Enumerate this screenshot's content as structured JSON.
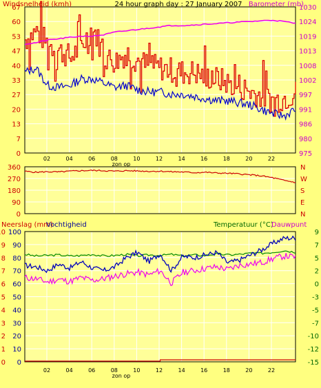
{
  "colors": {
    "background": "#ffff80",
    "plot_bg": "#ffff99",
    "grid": "#ffffff",
    "wind": "#dd0000",
    "wind_avg": "#0000cc",
    "barometer": "#ee00ee",
    "direction": "#cc0000",
    "humidity": "#0000bb",
    "temperature": "#008800",
    "dewpoint": "#ee00ee",
    "rain": "#cc0000",
    "label_red": "#cc0000",
    "label_magenta": "#cc00cc",
    "label_blue": "#000099",
    "label_green": "#006600",
    "axis_text": "#cc0000"
  },
  "chart_data": [
    {
      "type": "line",
      "title": "24 hour graph day : 27 January 2007",
      "ylabel": "Windsnelheid (kmh)",
      "y2label": "Barometer (mb)",
      "x_ticks": [
        "02",
        "04",
        "06",
        "08",
        "10",
        "12",
        "14",
        "16",
        "18",
        "20",
        "22"
      ],
      "x_sublabel": "zon op",
      "ylim": [
        0,
        67
      ],
      "y_ticks": [
        "67",
        "60",
        "53",
        "47",
        "40",
        "33",
        "27",
        "20",
        "13",
        "7",
        "0"
      ],
      "y2lim": [
        975,
        1030
      ],
      "y2_ticks": [
        "1030",
        "1024",
        "1019",
        "1013",
        "1008",
        "1002",
        "997",
        "991",
        "986",
        "980",
        "975"
      ],
      "series": [
        {
          "key": "gust",
          "x": [
            0,
            1,
            2,
            3,
            4,
            5,
            6,
            7,
            8,
            9,
            10,
            11,
            12,
            13,
            14,
            15,
            16,
            17,
            18,
            19,
            20,
            21,
            22,
            23,
            24
          ],
          "y": [
            52,
            56,
            50,
            47,
            44,
            49,
            58,
            44,
            42,
            46,
            42,
            40,
            39,
            38,
            37,
            37,
            35,
            34,
            32,
            31,
            28,
            26,
            24,
            25,
            28
          ]
        },
        {
          "key": "average",
          "x": [
            0,
            1,
            2,
            3,
            4,
            5,
            6,
            7,
            8,
            9,
            10,
            11,
            12,
            13,
            14,
            15,
            16,
            17,
            18,
            19,
            20,
            21,
            22,
            23,
            24
          ],
          "y": [
            37,
            39,
            31,
            30,
            31,
            34,
            34,
            32,
            30,
            31,
            29,
            28,
            28,
            27,
            27,
            26,
            25,
            24,
            24,
            23,
            22,
            20,
            18,
            17,
            20
          ]
        },
        {
          "key": "barometer",
          "x": [
            0,
            1,
            2,
            3,
            4,
            5,
            6,
            7,
            8,
            9,
            10,
            11,
            12,
            13,
            14,
            15,
            16,
            17,
            18,
            19,
            20,
            21,
            22,
            23,
            24
          ],
          "y": [
            1016,
            1016.5,
            1017.5,
            1018,
            1018.5,
            1019,
            1019,
            1019.5,
            1020.5,
            1021,
            1021.5,
            1022,
            1022.5,
            1023,
            1023,
            1023.2,
            1023.5,
            1023.7,
            1024,
            1024.3,
            1024.5,
            1024.8,
            1025,
            1024.5,
            1023.8
          ]
        }
      ]
    },
    {
      "type": "line",
      "ylim": [
        0,
        360
      ],
      "y_ticks": [
        "360",
        "270",
        "180",
        "90",
        "0"
      ],
      "y2_ticks": [
        "N",
        "W",
        "S",
        "E",
        "N"
      ],
      "series": [
        {
          "key": "direction",
          "x": [
            0,
            1,
            2,
            3,
            4,
            5,
            6,
            7,
            8,
            9,
            10,
            11,
            12,
            13,
            14,
            15,
            16,
            17,
            18,
            19,
            20,
            21,
            22,
            23,
            24
          ],
          "y": [
            325,
            318,
            322,
            320,
            326,
            330,
            332,
            330,
            326,
            330,
            328,
            325,
            326,
            322,
            320,
            315,
            318,
            312,
            310,
            305,
            298,
            290,
            275,
            255,
            240
          ]
        }
      ]
    },
    {
      "type": "line",
      "ylabel": "Neerslag (mm)",
      "ylabel2": "Vochtigheid",
      "y2label": "Temperatuur (°C)",
      "y2label2": "Dauwpunt",
      "x_ticks": [
        "02",
        "04",
        "06",
        "08",
        "10",
        "12",
        "14",
        "16",
        "18",
        "20",
        "22"
      ],
      "x_sublabel": "zon op",
      "ylim_humidity": [
        0,
        100
      ],
      "y_ticks": [
        "10",
        "9",
        "8",
        "7",
        "6",
        "5",
        "4",
        "3",
        "2",
        "1",
        "0"
      ],
      "y_ticks2": [
        "100",
        "90",
        "80",
        "70",
        "60",
        "50",
        "40",
        "30",
        "20",
        "10",
        "0"
      ],
      "y2lim": [
        -15,
        9
      ],
      "y2_ticks": [
        "9",
        "7",
        "5",
        "2",
        "0",
        "-3",
        "-5",
        "-7",
        "-10",
        "-12",
        "-15"
      ],
      "series": [
        {
          "key": "humidity",
          "x": [
            0,
            1,
            2,
            3,
            4,
            5,
            6,
            7,
            8,
            9,
            10,
            11,
            12,
            13,
            14,
            15,
            16,
            17,
            18,
            19,
            20,
            21,
            22,
            23,
            24
          ],
          "y": [
            74,
            73,
            70,
            75,
            72,
            77,
            72,
            70,
            73,
            80,
            84,
            77,
            83,
            70,
            81,
            80,
            82,
            84,
            76,
            78,
            82,
            86,
            91,
            95,
            95
          ]
        },
        {
          "key": "temperature",
          "x": [
            0,
            1,
            2,
            3,
            4,
            5,
            6,
            7,
            8,
            9,
            10,
            11,
            12,
            13,
            14,
            15,
            16,
            17,
            18,
            19,
            20,
            21,
            22,
            23,
            24
          ],
          "y": [
            4.8,
            4.5,
            4.6,
            4.7,
            4.5,
            4.6,
            4.8,
            4.5,
            4.6,
            4.8,
            4.5,
            4.7,
            4.6,
            4.8,
            4.5,
            4.7,
            4.6,
            4.9,
            4.7,
            4.8,
            5.0,
            5.0,
            5.2,
            5.5,
            5.2
          ]
        },
        {
          "key": "dewpoint",
          "x": [
            0,
            1,
            2,
            3,
            4,
            5,
            6,
            7,
            8,
            9,
            10,
            11,
            12,
            13,
            14,
            15,
            16,
            17,
            18,
            19,
            20,
            21,
            22,
            23,
            24
          ],
          "y": [
            0.5,
            0.3,
            -0.3,
            0.2,
            -0.2,
            0.5,
            0.0,
            0.3,
            0.8,
            1.2,
            1.5,
            1.0,
            1.8,
            -0.5,
            1.5,
            1.8,
            2.2,
            2.5,
            2.0,
            2.8,
            3.0,
            3.3,
            4.0,
            4.5,
            4.3
          ]
        },
        {
          "key": "rain",
          "x": [
            0,
            2,
            4,
            6,
            8,
            10,
            12,
            14,
            16,
            18,
            20,
            22,
            24
          ],
          "y": [
            0,
            0,
            0,
            0,
            0,
            0,
            0.1,
            0.1,
            0.1,
            0.1,
            0.1,
            0.1,
            0.1
          ]
        }
      ]
    }
  ]
}
